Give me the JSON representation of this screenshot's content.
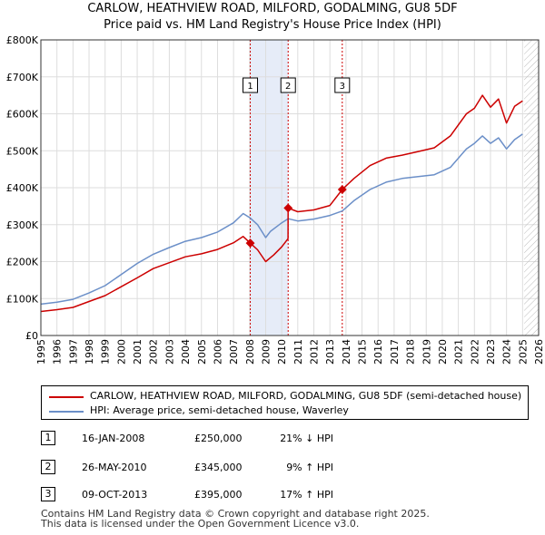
{
  "chart_data": {
    "type": "line",
    "title": "CARLOW, HEATHVIEW ROAD, MILFORD, GODALMING, GU8 5DF",
    "subtitle": "Price paid vs. HM Land Registry's House Price Index (HPI)",
    "xlabel": "",
    "ylabel": "",
    "xlim": [
      1995,
      2026
    ],
    "ylim": [
      0,
      800000
    ],
    "x_ticks": [
      1995,
      1996,
      1997,
      1998,
      1999,
      2000,
      2001,
      2002,
      2003,
      2004,
      2005,
      2006,
      2007,
      2008,
      2009,
      2010,
      2011,
      2012,
      2013,
      2014,
      2015,
      2016,
      2017,
      2018,
      2019,
      2020,
      2021,
      2022,
      2023,
      2024,
      2025,
      2026
    ],
    "y_ticks": [
      0,
      100000,
      200000,
      300000,
      400000,
      500000,
      600000,
      700000,
      800000
    ],
    "y_tick_labels": [
      "£0",
      "£100K",
      "£200K",
      "£300K",
      "£400K",
      "£500K",
      "£600K",
      "£700K",
      "£800K"
    ],
    "grid": true,
    "future_hatch_from": 2025.1,
    "shaded_periods": [
      [
        2008.04,
        2010.4
      ]
    ],
    "series": [
      {
        "name": "CARLOW, HEATHVIEW ROAD, MILFORD, GODALMING, GU8 5DF (semi-detached house)",
        "color": "#cc0000",
        "x": [
          1995.0,
          1996.0,
          1997.0,
          1998.0,
          1999.0,
          2000.0,
          2001.0,
          2002.0,
          2003.0,
          2004.0,
          2005.0,
          2006.0,
          2007.0,
          2007.6,
          2008.04,
          2008.5,
          2009.0,
          2009.5,
          2010.0,
          2010.39,
          2010.4,
          2011.0,
          2012.0,
          2013.0,
          2013.77,
          2014.5,
          2015.5,
          2016.5,
          2017.5,
          2018.5,
          2019.5,
          2020.5,
          2021.5,
          2022.0,
          2022.5,
          2023.0,
          2023.5,
          2024.0,
          2024.5,
          2025.0
        ],
        "y": [
          65000,
          70000,
          76000,
          92000,
          108000,
          132000,
          156000,
          181000,
          197000,
          213000,
          221000,
          233000,
          251000,
          268000,
          250000,
          232000,
          200000,
          218000,
          240000,
          262000,
          345000,
          335000,
          340000,
          352000,
          395000,
          425000,
          460000,
          480000,
          488000,
          498000,
          508000,
          540000,
          600000,
          615000,
          650000,
          618000,
          640000,
          575000,
          620000,
          635000
        ]
      },
      {
        "name": "HPI: Average price, semi-detached house, Waverley",
        "color": "#6b8fc8",
        "x": [
          1995.0,
          1996.0,
          1997.0,
          1998.0,
          1999.0,
          2000.0,
          2001.0,
          2002.0,
          2003.0,
          2004.0,
          2005.0,
          2006.0,
          2007.0,
          2007.6,
          2008.04,
          2008.5,
          2009.0,
          2009.3,
          2010.0,
          2010.4,
          2011.0,
          2012.0,
          2013.0,
          2013.77,
          2014.5,
          2015.5,
          2016.5,
          2017.5,
          2018.5,
          2019.5,
          2020.5,
          2021.5,
          2022.0,
          2022.5,
          2023.0,
          2023.5,
          2024.0,
          2024.5,
          2025.0
        ],
        "y": [
          85000,
          90000,
          98000,
          115000,
          135000,
          165000,
          195000,
          220000,
          238000,
          255000,
          265000,
          280000,
          305000,
          330000,
          318000,
          300000,
          265000,
          282000,
          305000,
          316000,
          310000,
          315000,
          325000,
          337000,
          365000,
          395000,
          415000,
          425000,
          430000,
          435000,
          455000,
          505000,
          520000,
          540000,
          520000,
          535000,
          505000,
          530000,
          545000
        ]
      }
    ],
    "markers": [
      {
        "label": "1",
        "x": 2008.04,
        "y": 250000
      },
      {
        "label": "2",
        "x": 2010.4,
        "y": 345000
      },
      {
        "label": "3",
        "x": 2013.77,
        "y": 395000
      }
    ]
  },
  "legend": {
    "property_label": "CARLOW, HEATHVIEW ROAD, MILFORD, GODALMING, GU8 5DF (semi-detached house)",
    "hpi_label": "HPI: Average price, semi-detached house, Waverley"
  },
  "transactions": [
    {
      "num": "1",
      "date": "16-JAN-2008",
      "price": "£250,000",
      "hpi": "21% ↓ HPI"
    },
    {
      "num": "2",
      "date": "26-MAY-2010",
      "price": "£345,000",
      "hpi": "9% ↑ HPI"
    },
    {
      "num": "3",
      "date": "09-OCT-2013",
      "price": "£395,000",
      "hpi": "17% ↑ HPI"
    }
  ],
  "footer": {
    "line1": "Contains HM Land Registry data © Crown copyright and database right 2025.",
    "line2": "This data is licensed under the Open Government Licence v3.0."
  }
}
